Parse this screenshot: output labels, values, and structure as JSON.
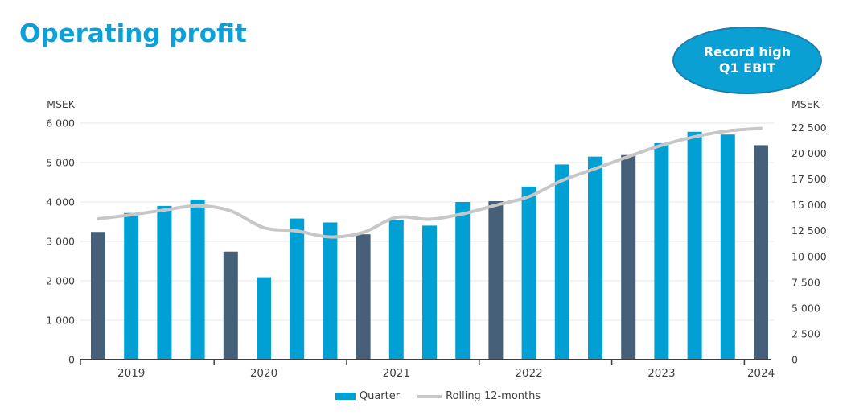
{
  "header": {
    "title": "Operating profit"
  },
  "badge": {
    "line1": "Record high",
    "line2": "Q1 EBIT"
  },
  "colors": {
    "title": "#0ba1d8",
    "quarter_bar": "#009fd4",
    "q1_highlight_bar": "#46607a",
    "rolling_line": "#c7c7c7",
    "gridline": "#e7e7e7",
    "axis_line": "#3f3f3f",
    "axis_text": "#404040",
    "badge_fill": "#0aa0d4",
    "badge_border": "#1f7dac",
    "badge_text": "#ffffff"
  },
  "chart_data": {
    "type": "bar",
    "title": "Operating profit",
    "annotation": "Record high Q1 EBIT",
    "left_axis": {
      "unit": "MSEK",
      "min": 0,
      "max": 6000,
      "step": 1000,
      "tick_labels": [
        "0",
        "1 000",
        "2 000",
        "3 000",
        "4 000",
        "5 000",
        "6 000"
      ]
    },
    "right_axis": {
      "unit": "MSEK",
      "min": 0,
      "max": 22500,
      "step": 2500,
      "tick_labels": [
        "0",
        "2 500",
        "5 000",
        "7 500",
        "10 000",
        "12 500",
        "15 000",
        "17 500",
        "20 000",
        "22 500"
      ]
    },
    "grid": "horizontal",
    "years": [
      "2019",
      "2020",
      "2021",
      "2022",
      "2023",
      "2024"
    ],
    "categories": [
      "Q1 2019",
      "Q2 2019",
      "Q3 2019",
      "Q4 2019",
      "Q1 2020",
      "Q2 2020",
      "Q3 2020",
      "Q4 2020",
      "Q1 2021",
      "Q2 2021",
      "Q3 2021",
      "Q4 2021",
      "Q1 2022",
      "Q2 2022",
      "Q3 2022",
      "Q4 2022",
      "Q1 2023",
      "Q2 2023",
      "Q3 2023",
      "Q4 2023",
      "Q1 2024"
    ],
    "series": [
      {
        "name": "Quarter",
        "type": "bar",
        "axis": "left",
        "values": [
          3240,
          3720,
          3900,
          4060,
          2740,
          2090,
          3580,
          3480,
          3180,
          3550,
          3400,
          4000,
          4020,
          4390,
          4950,
          5150,
          5190,
          5490,
          5780,
          5710,
          5440
        ],
        "q1_highlighted": [
          true,
          false,
          false,
          false,
          true,
          false,
          false,
          false,
          true,
          false,
          false,
          false,
          true,
          false,
          false,
          false,
          true,
          false,
          false,
          false,
          true
        ]
      },
      {
        "name": "Rolling 12-months",
        "type": "line",
        "axis": "right",
        "values": [
          13650,
          14040,
          14500,
          14920,
          14420,
          12790,
          12470,
          11890,
          12330,
          13790,
          13610,
          14130,
          14970,
          15810,
          17360,
          18510,
          19680,
          20780,
          21610,
          22170,
          22420
        ]
      }
    ],
    "legend": [
      {
        "label": "Quarter",
        "swatch": "bar"
      },
      {
        "label": "Rolling 12-months",
        "swatch": "line"
      }
    ],
    "legend_position": "bottom"
  }
}
